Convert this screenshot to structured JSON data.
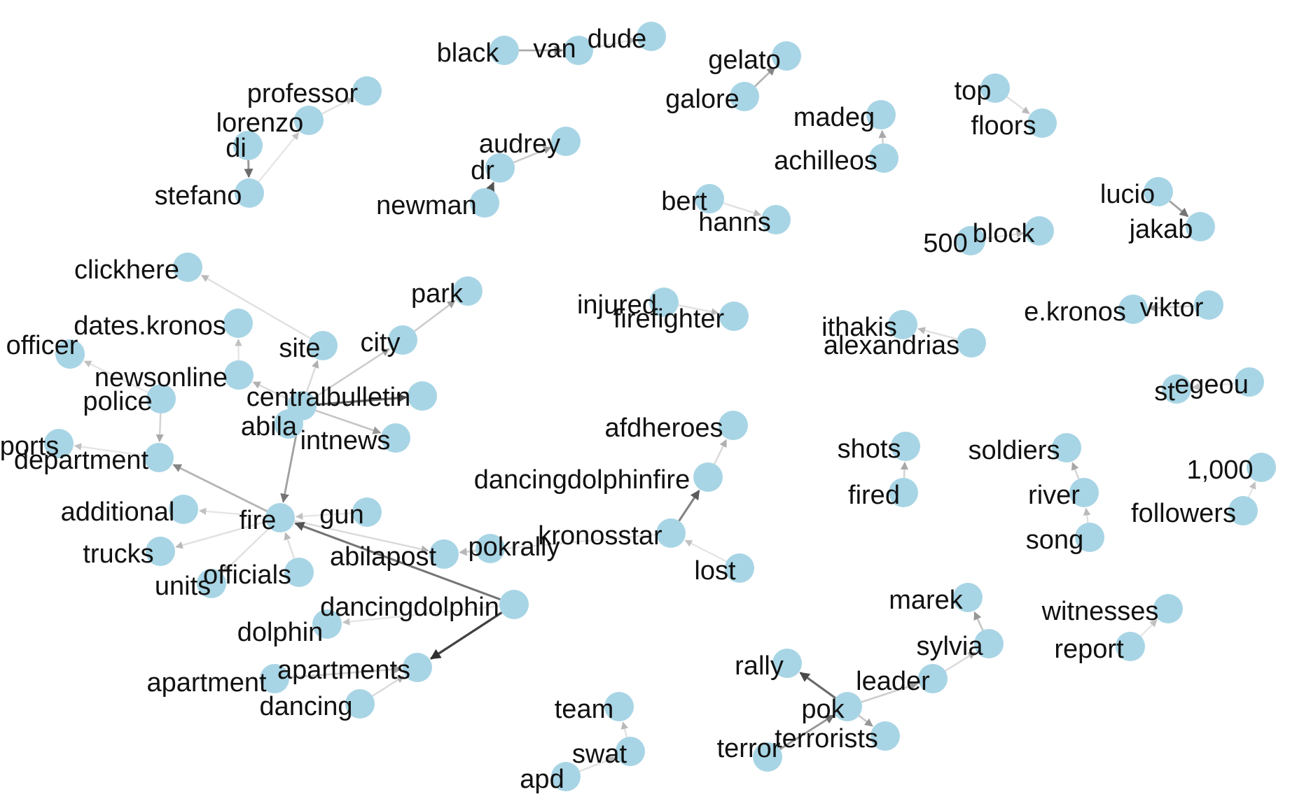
{
  "style": {
    "node_color": "#a8d5e5",
    "edge_color": "#000000",
    "background": "#ffffff"
  },
  "nodes": [
    {
      "id": "black",
      "label": "black"
    },
    {
      "id": "van",
      "label": "van"
    },
    {
      "id": "dude",
      "label": "dude"
    },
    {
      "id": "gelato",
      "label": "gelato"
    },
    {
      "id": "galore",
      "label": "galore"
    },
    {
      "id": "professor",
      "label": "professor"
    },
    {
      "id": "lorenzo",
      "label": "lorenzo"
    },
    {
      "id": "di",
      "label": "di"
    },
    {
      "id": "stefano",
      "label": "stefano"
    },
    {
      "id": "top",
      "label": "top"
    },
    {
      "id": "floors",
      "label": "floors"
    },
    {
      "id": "madeg",
      "label": "madeg"
    },
    {
      "id": "achilleos",
      "label": "achilleos"
    },
    {
      "id": "audrey",
      "label": "audrey"
    },
    {
      "id": "dr",
      "label": "dr"
    },
    {
      "id": "newman",
      "label": "newman"
    },
    {
      "id": "bert",
      "label": "bert"
    },
    {
      "id": "hanns",
      "label": "hanns"
    },
    {
      "id": "lucio",
      "label": "lucio"
    },
    {
      "id": "jakab",
      "label": "jakab"
    },
    {
      "id": "500",
      "label": "500"
    },
    {
      "id": "block",
      "label": "block"
    },
    {
      "id": "clickhere",
      "label": "clickhere"
    },
    {
      "id": "park",
      "label": "park"
    },
    {
      "id": "dates.kronos",
      "label": "dates.kronos"
    },
    {
      "id": "officer",
      "label": "officer"
    },
    {
      "id": "site",
      "label": "site"
    },
    {
      "id": "city",
      "label": "city"
    },
    {
      "id": "injured",
      "label": "injured"
    },
    {
      "id": "firefighter",
      "label": "firefighter"
    },
    {
      "id": "ithakis",
      "label": "ithakis"
    },
    {
      "id": "alexandrias",
      "label": "alexandrias"
    },
    {
      "id": "e.kronos",
      "label": "e.kronos"
    },
    {
      "id": "viktor",
      "label": "viktor"
    },
    {
      "id": "newsonline",
      "label": "newsonline"
    },
    {
      "id": "police",
      "label": "police"
    },
    {
      "id": "centralbulletin",
      "label": "centralbulletin"
    },
    {
      "id": "abila",
      "label": "abila"
    },
    {
      "id": "intnews",
      "label": "intnews"
    },
    {
      "id": "reports",
      "label": "ports"
    },
    {
      "id": "department",
      "label": "department"
    },
    {
      "id": "st",
      "label": "st"
    },
    {
      "id": "egeou",
      "label": "egeou"
    },
    {
      "id": "afdheroes",
      "label": "afdheroes"
    },
    {
      "id": "dancingdolphinfire",
      "label": "dancingdolphinfire"
    },
    {
      "id": "shots",
      "label": "shots"
    },
    {
      "id": "fired",
      "label": "fired"
    },
    {
      "id": "soldiers",
      "label": "soldiers"
    },
    {
      "id": "river",
      "label": "river"
    },
    {
      "id": "song",
      "label": "song"
    },
    {
      "id": "1,000",
      "label": "1,000"
    },
    {
      "id": "followers",
      "label": "followers"
    },
    {
      "id": "additional",
      "label": "additional"
    },
    {
      "id": "fire",
      "label": "fire"
    },
    {
      "id": "gun",
      "label": "gun"
    },
    {
      "id": "kronosstar",
      "label": "kronosstar"
    },
    {
      "id": "trucks",
      "label": "trucks"
    },
    {
      "id": "abilapost",
      "label": "abilapost"
    },
    {
      "id": "pokrally",
      "label": "pokrally"
    },
    {
      "id": "lost",
      "label": "lost"
    },
    {
      "id": "units",
      "label": "units"
    },
    {
      "id": "officials",
      "label": "officials"
    },
    {
      "id": "dancingdolphin",
      "label": "dancingdolphin"
    },
    {
      "id": "marek",
      "label": "marek"
    },
    {
      "id": "witnesses",
      "label": "witnesses"
    },
    {
      "id": "sylvia",
      "label": "sylvia"
    },
    {
      "id": "report",
      "label": "report"
    },
    {
      "id": "dolphin",
      "label": "dolphin"
    },
    {
      "id": "apartments",
      "label": "apartments"
    },
    {
      "id": "apartment",
      "label": "apartment"
    },
    {
      "id": "rally",
      "label": "rally"
    },
    {
      "id": "leader",
      "label": "leader"
    },
    {
      "id": "dancing",
      "label": "dancing"
    },
    {
      "id": "pok",
      "label": "pok"
    },
    {
      "id": "team",
      "label": "team"
    },
    {
      "id": "terror",
      "label": "terror"
    },
    {
      "id": "terrorists",
      "label": "terrorists"
    },
    {
      "id": "swat",
      "label": "swat"
    },
    {
      "id": "apd",
      "label": "apd"
    }
  ],
  "edges": [
    {
      "source": "black",
      "target": "van",
      "weight": 0.5
    },
    {
      "source": "van",
      "target": "dude",
      "weight": 0.15
    },
    {
      "source": "galore",
      "target": "gelato",
      "weight": 0.45
    },
    {
      "source": "lorenzo",
      "target": "professor",
      "weight": 0.15
    },
    {
      "source": "stefano",
      "target": "lorenzo",
      "weight": 0.1
    },
    {
      "source": "di",
      "target": "stefano",
      "weight": 0.6
    },
    {
      "source": "top",
      "target": "floors",
      "weight": 0.15
    },
    {
      "source": "achilleos",
      "target": "madeg",
      "weight": 0.25
    },
    {
      "source": "dr",
      "target": "audrey",
      "weight": 0.3
    },
    {
      "source": "newman",
      "target": "dr",
      "weight": 0.75
    },
    {
      "source": "bert",
      "target": "hanns",
      "weight": 0.15
    },
    {
      "source": "lucio",
      "target": "jakab",
      "weight": 0.55
    },
    {
      "source": "500",
      "target": "block",
      "weight": 0.15
    },
    {
      "source": "injured",
      "target": "firefighter",
      "weight": 0.15
    },
    {
      "source": "alexandrias",
      "target": "ithakis",
      "weight": 0.15
    },
    {
      "source": "viktor",
      "target": "e.kronos",
      "weight": 0.3
    },
    {
      "source": "egeou",
      "target": "st",
      "weight": 0.1
    },
    {
      "source": "fired",
      "target": "shots",
      "weight": 0.25
    },
    {
      "source": "river",
      "target": "soldiers",
      "weight": 0.25
    },
    {
      "source": "song",
      "target": "river",
      "weight": 0.15
    },
    {
      "source": "followers",
      "target": "1,000",
      "weight": 0.1
    },
    {
      "source": "report",
      "target": "witnesses",
      "weight": 0.1
    },
    {
      "source": "sylvia",
      "target": "marek",
      "weight": 0.35
    },
    {
      "source": "leader",
      "target": "sylvia",
      "weight": 0.2
    },
    {
      "source": "pok",
      "target": "leader",
      "weight": 0.3
    },
    {
      "source": "pok",
      "target": "rally",
      "weight": 0.8
    },
    {
      "source": "pok",
      "target": "terrorists",
      "weight": 0.35
    },
    {
      "source": "terror",
      "target": "pok",
      "weight": 0.6
    },
    {
      "source": "swat",
      "target": "team",
      "weight": 0.15
    },
    {
      "source": "apd",
      "target": "swat",
      "weight": 0.15
    },
    {
      "source": "site",
      "target": "clickhere",
      "weight": 0.15
    },
    {
      "source": "city",
      "target": "park",
      "weight": 0.3
    },
    {
      "source": "centralbulletin",
      "target": "site",
      "weight": 0.2
    },
    {
      "source": "centralbulletin",
      "target": "city",
      "weight": 0.3
    },
    {
      "source": "centralbulletin",
      "target": "newsonline",
      "weight": 0.2
    },
    {
      "source": "centralbulletin",
      "target": "abila",
      "weight": 0.6
    },
    {
      "source": "centralbulletin",
      "target": "intnews",
      "weight": 0.35
    },
    {
      "source": "centralbulletin",
      "target": "bulletin",
      "weight": 0.8
    },
    {
      "source": "centralbulletin",
      "target": "fire",
      "weight": 0.55
    },
    {
      "source": "newsonline",
      "target": "dates.kronos",
      "weight": 0.1
    },
    {
      "source": "police",
      "target": "officer",
      "weight": 0.1
    },
    {
      "source": "police",
      "target": "department",
      "weight": 0.25
    },
    {
      "source": "department",
      "target": "reports",
      "weight": 0.1
    },
    {
      "source": "fire",
      "target": "department",
      "weight": 0.45
    },
    {
      "source": "fire",
      "target": "additional",
      "weight": 0.1
    },
    {
      "source": "fire",
      "target": "trucks",
      "weight": 0.15
    },
    {
      "source": "fire",
      "target": "units",
      "weight": 0.15
    },
    {
      "source": "fire",
      "target": "abilapost",
      "weight": 0.2
    },
    {
      "source": "gun",
      "target": "fire",
      "weight": 0.1
    },
    {
      "source": "officials",
      "target": "fire",
      "weight": 0.15
    },
    {
      "source": "dancingdolphin",
      "target": "fire",
      "weight": 0.75
    },
    {
      "source": "kronosstar",
      "target": "abilapost",
      "weight": 0.15
    },
    {
      "source": "kronosstar",
      "target": "dancingdolphinfire",
      "weight": 0.7
    },
    {
      "source": "lost",
      "target": "kronosstar",
      "weight": 0.1
    },
    {
      "source": "dancingdolphinfire",
      "target": "afdheroes",
      "weight": 0.2
    },
    {
      "source": "pokrally",
      "target": "abilapost",
      "weight": 0.15
    },
    {
      "source": "dancingdolphin",
      "target": "apartments",
      "weight": 0.95
    },
    {
      "source": "dancingdolphin",
      "target": "dolphin",
      "weight": 0.1
    },
    {
      "source": "apartment",
      "target": "apartments",
      "weight": 0.3
    },
    {
      "source": "dancing",
      "target": "apartments",
      "weight": 0.2
    }
  ]
}
